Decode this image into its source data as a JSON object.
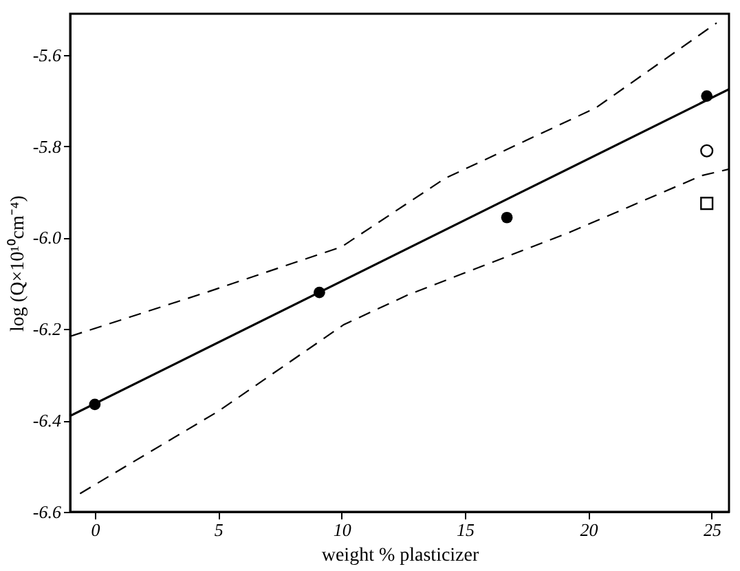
{
  "chart_data": {
    "type": "scatter",
    "xlabel": "weight % plasticizer",
    "ylabel": "log (Q×10¹⁰cm⁻⁴)",
    "xlim": [
      -1,
      25.7
    ],
    "xticks": [
      0,
      5,
      10,
      15,
      20,
      25
    ],
    "ylim": [
      -6.6,
      -5.51
    ],
    "yticks": [
      -6.6,
      -6.4,
      -6.2,
      {
        "value": -6.0,
        "label": "-6.0"
      },
      -5.8,
      -5.6
    ],
    "grid": false,
    "series": [
      {
        "marker": "circle",
        "color": "#000000",
        "x": [
          0,
          9.1,
          16.7,
          24.8
        ],
        "values": [
          -6.365,
          -6.12,
          -5.956,
          -5.69
        ]
      },
      {
        "marker": "circle",
        "color": "#000000",
        "x": [
          24.8
        ],
        "values": [
          -5.81
        ]
      },
      {
        "marker": "square",
        "color": "#000000",
        "x": [
          24.8
        ],
        "values": [
          -5.925
        ]
      },
      {
        "type": "line",
        "line_style": "solid",
        "color": "#000000",
        "x": [
          -1,
          25.7
        ],
        "values": [
          -6.39,
          -5.675
        ]
      },
      {
        "type": "line",
        "line_style": "dashed",
        "color": "#000000",
        "x": [
          -1,
          4.5,
          10,
          14.2,
          20.3,
          25.2
        ],
        "values": [
          -6.216,
          -6.12,
          -6.02,
          -5.87,
          -5.716,
          -5.53
        ]
      },
      {
        "type": "line",
        "line_style": "dashed",
        "color": "#000000",
        "x": [
          -0.6,
          5,
          10.1,
          12.7,
          19.3,
          24.6,
          25.7
        ],
        "values": [
          -6.56,
          -6.38,
          -6.19,
          -6.125,
          -5.987,
          -5.864,
          -5.85
        ]
      }
    ]
  }
}
